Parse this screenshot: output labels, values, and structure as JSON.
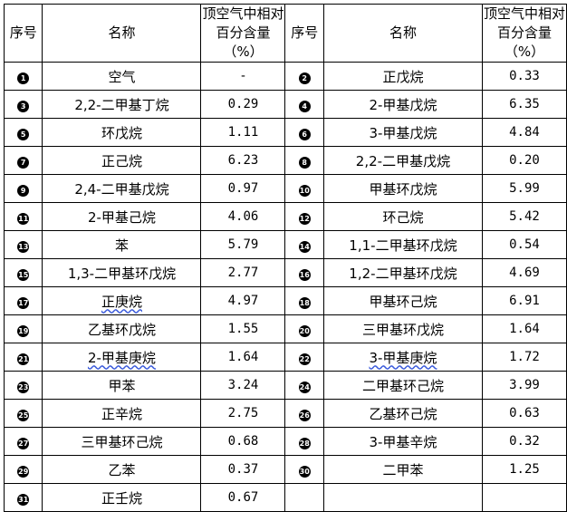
{
  "header": {
    "seq": "序号",
    "name": "名称",
    "content_line1": "顶空气中相对",
    "content_line2": "百分含量（%）"
  },
  "rows": [
    {
      "left": {
        "num": "1",
        "name": "空气",
        "value": "-"
      },
      "right": {
        "num": "2",
        "name": "正戊烷",
        "value": "0.33"
      }
    },
    {
      "left": {
        "num": "3",
        "name": "2,2-二甲基丁烷",
        "value": "0.29"
      },
      "right": {
        "num": "4",
        "name": "2-甲基戊烷",
        "value": "6.35"
      }
    },
    {
      "left": {
        "num": "5",
        "name": "环戊烷",
        "value": "1.11"
      },
      "right": {
        "num": "6",
        "name": "3-甲基戊烷",
        "value": "4.84"
      }
    },
    {
      "left": {
        "num": "7",
        "name": "正己烷",
        "value": "6.23"
      },
      "right": {
        "num": "8",
        "name": "2,2-二甲基戊烷",
        "value": "0.20"
      }
    },
    {
      "left": {
        "num": "9",
        "name": "2,4-二甲基戊烷",
        "value": "0.97"
      },
      "right": {
        "num": "10",
        "name": "甲基环戊烷",
        "value": "5.99"
      }
    },
    {
      "left": {
        "num": "11",
        "name": "2-甲基己烷",
        "value": "4.06"
      },
      "right": {
        "num": "12",
        "name": "环己烷",
        "value": "5.42"
      }
    },
    {
      "left": {
        "num": "13",
        "name": "苯",
        "value": "5.79"
      },
      "right": {
        "num": "14",
        "name": "1,1-二甲基环戊烷",
        "value": "0.54"
      }
    },
    {
      "left": {
        "num": "15",
        "name": "1,3-二甲基环戊烷",
        "value": "2.77"
      },
      "right": {
        "num": "16",
        "name": "1,2-二甲基环戊烷",
        "value": "4.69"
      }
    },
    {
      "left": {
        "num": "17",
        "name": "正庚烷",
        "value": "4.97"
      },
      "right": {
        "num": "18",
        "name": "甲基环己烷",
        "value": "6.91"
      }
    },
    {
      "left": {
        "num": "19",
        "name": "乙基环戊烷",
        "value": "1.55"
      },
      "right": {
        "num": "20",
        "name": "三甲基环戊烷",
        "value": "1.64"
      }
    },
    {
      "left": {
        "num": "21",
        "name": "2-甲基庚烷",
        "value": "1.64"
      },
      "right": {
        "num": "22",
        "name": "3-甲基庚烷",
        "value": "1.72"
      }
    },
    {
      "left": {
        "num": "23",
        "name": "甲苯",
        "value": "3.24"
      },
      "right": {
        "num": "24",
        "name": "二甲基环己烷",
        "value": "3.99"
      }
    },
    {
      "left": {
        "num": "25",
        "name": "正辛烷",
        "value": "2.75"
      },
      "right": {
        "num": "26",
        "name": "乙基环己烷",
        "value": "0.63"
      }
    },
    {
      "left": {
        "num": "27",
        "name": "三甲基环己烷",
        "value": "0.68"
      },
      "right": {
        "num": "28",
        "name": "3-甲基辛烷",
        "value": "0.32"
      }
    },
    {
      "left": {
        "num": "29",
        "name": "乙苯",
        "value": "0.37"
      },
      "right": {
        "num": "30",
        "name": "二甲苯",
        "value": "1.25"
      }
    },
    {
      "left": {
        "num": "31",
        "name": "正壬烷",
        "value": "0.67"
      },
      "right": null
    }
  ]
}
